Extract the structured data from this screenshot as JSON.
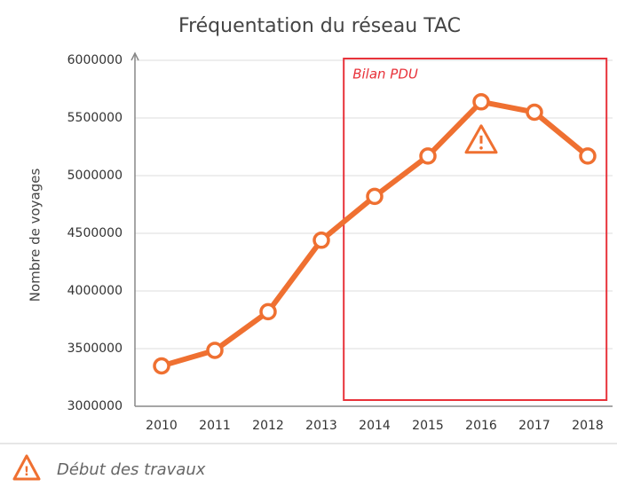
{
  "chart_data": {
    "type": "line",
    "title": "Fréquentation du réseau TAC",
    "y_label": "Nombre de voyages",
    "categories": [
      "2010",
      "2011",
      "2012",
      "2013",
      "2014",
      "2015",
      "2016",
      "2017",
      "2018"
    ],
    "series": [
      {
        "name": "Fréquentation",
        "color": "#ef7031",
        "values": [
          3350000,
          3485000,
          3820000,
          4440000,
          4820000,
          5170000,
          5640000,
          5550000,
          5170000
        ]
      }
    ],
    "ylim": [
      3000000,
      6000000
    ],
    "yticks": [
      3000000,
      3500000,
      4000000,
      4500000,
      5000000,
      5500000,
      6000000
    ],
    "grid": true,
    "annotations": [
      {
        "text": "Bilan PDU"
      }
    ],
    "note": {
      "text": "Début des travaux"
    }
  }
}
